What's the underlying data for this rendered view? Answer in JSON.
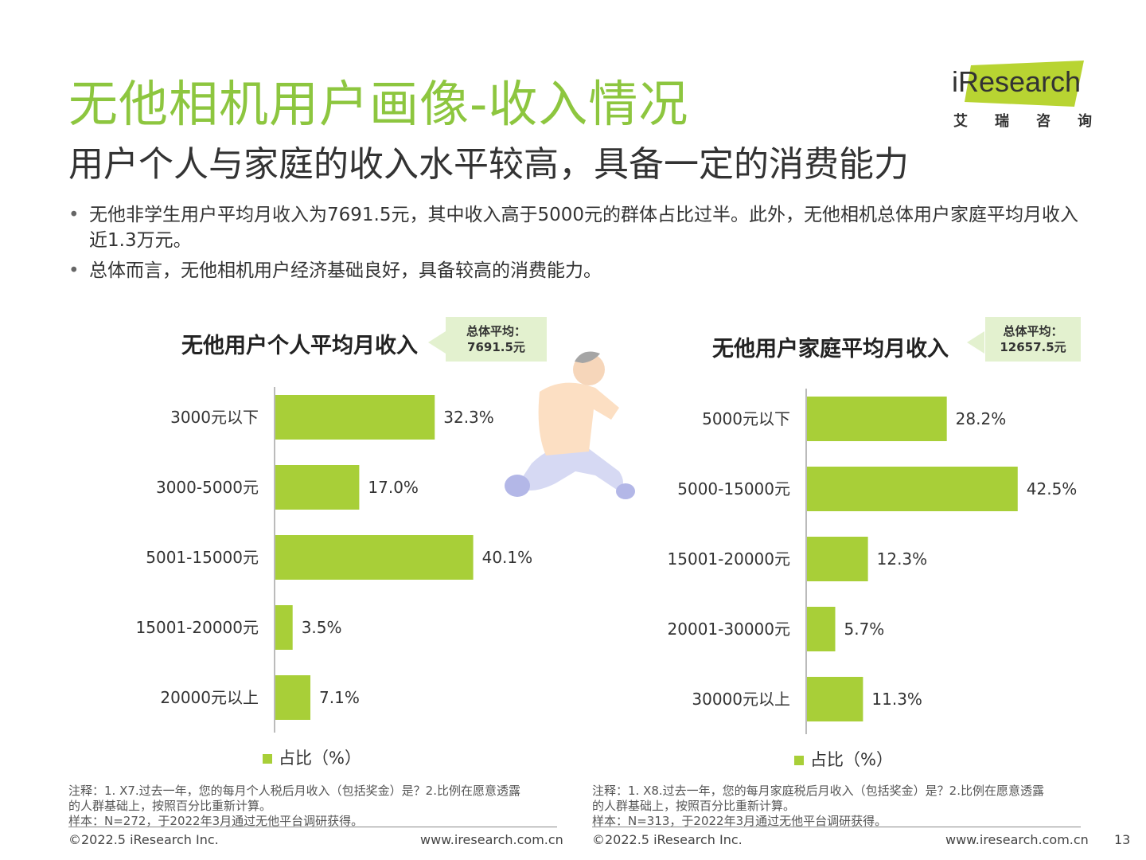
{
  "title": "无他相机用户画像-收入情况",
  "subtitle": "用户个人与家庭的收入水平较高，具备一定的消费能力",
  "logo": {
    "brand_i": "i",
    "brand_rest": "Research",
    "cn": "艾瑞咨询",
    "color": "#b8d432"
  },
  "bullets": [
    "无他非学生用户平均月收入为7691.5元，其中收入高于5000元的群体占比过半。此外，无他相机总体用户家庭平均月收入近1.3万元。",
    "总体而言，无他相机用户经济基础良好，具备较高的消费能力。"
  ],
  "colors": {
    "accent": "#8dc63f",
    "bar": "#a8cf38",
    "avg_box": "#e3f1cf"
  },
  "chart_data": [
    {
      "type": "bar",
      "orientation": "horizontal",
      "title": "无他用户个人平均月收入",
      "average_label": "总体平均：",
      "average_value": "7691.5元",
      "categories": [
        "3000元以下",
        "3000-5000元",
        "5001-15000元",
        "15001-20000元",
        "20000元以上"
      ],
      "values": [
        32.3,
        17.0,
        40.1,
        3.5,
        7.1
      ],
      "value_labels": [
        "32.3%",
        "17.0%",
        "40.1%",
        "3.5%",
        "7.1%"
      ],
      "xlim": [
        0,
        45
      ],
      "legend": "占比（%）",
      "note_lines": [
        "注释：1. X7.过去一年，您的每月个人税后月收入（包括奖金）是？2.比例在愿意透露",
        "的人群基础上，按照百分比重新计算。",
        "样本：N=272，于2022年3月通过无他平台调研获得。"
      ],
      "footer_left": "©2022.5 iResearch Inc.",
      "footer_right": "www.iresearch.com.cn"
    },
    {
      "type": "bar",
      "orientation": "horizontal",
      "title": "无他用户家庭平均月收入",
      "average_label": "总体平均：",
      "average_value": "12657.5元",
      "categories": [
        "5000元以下",
        "5000-15000元",
        "15001-20000元",
        "20001-30000元",
        "30000元以上"
      ],
      "values": [
        28.2,
        42.5,
        12.3,
        5.7,
        11.3
      ],
      "value_labels": [
        "28.2%",
        "42.5%",
        "12.3%",
        "5.7%",
        "11.3%"
      ],
      "xlim": [
        0,
        45
      ],
      "legend": "占比（%）",
      "note_lines": [
        "注释：1. X8.过去一年，您的每月家庭税后月收入（包括奖金）是？2.比例在愿意透露",
        "的人群基础上，按照百分比重新计算。",
        "样本：N=313，于2022年3月通过无他平台调研获得。"
      ],
      "footer_left": "©2022.5 iResearch Inc.",
      "footer_right": "www.iresearch.com.cn"
    }
  ],
  "page_number": "13"
}
